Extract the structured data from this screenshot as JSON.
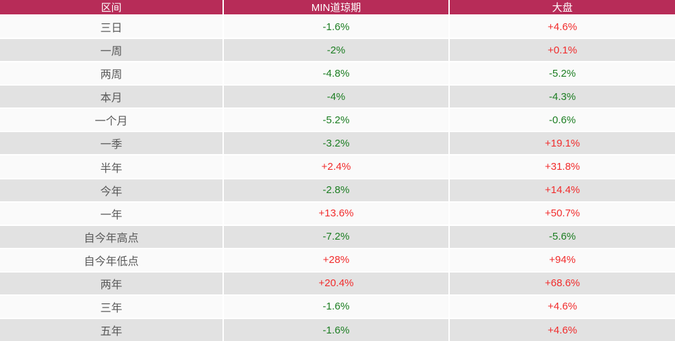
{
  "theme": {
    "header_bg": "#b72c58",
    "header_text": "#ffffff",
    "row_light": "#fafafa",
    "row_dark": "#e2e2e2",
    "label_color": "#595959",
    "up_color": "#f12b2b",
    "down_color": "#1b7d21",
    "divider": "#ffffff"
  },
  "table": {
    "columns": [
      "区间",
      "MIN道琼期",
      "大盘"
    ],
    "rows": [
      {
        "label": "三日",
        "min": {
          "text": "-1.6%",
          "dir": "down"
        },
        "market": {
          "text": "+4.6%",
          "dir": "up"
        }
      },
      {
        "label": "一周",
        "min": {
          "text": "-2%",
          "dir": "down"
        },
        "market": {
          "text": "+0.1%",
          "dir": "up"
        }
      },
      {
        "label": "两周",
        "min": {
          "text": "-4.8%",
          "dir": "down"
        },
        "market": {
          "text": "-5.2%",
          "dir": "down"
        }
      },
      {
        "label": "本月",
        "min": {
          "text": "-4%",
          "dir": "down"
        },
        "market": {
          "text": "-4.3%",
          "dir": "down"
        }
      },
      {
        "label": "一个月",
        "min": {
          "text": "-5.2%",
          "dir": "down"
        },
        "market": {
          "text": "-0.6%",
          "dir": "down"
        }
      },
      {
        "label": "一季",
        "min": {
          "text": "-3.2%",
          "dir": "down"
        },
        "market": {
          "text": "+19.1%",
          "dir": "up"
        }
      },
      {
        "label": "半年",
        "min": {
          "text": "+2.4%",
          "dir": "up"
        },
        "market": {
          "text": "+31.8%",
          "dir": "up"
        }
      },
      {
        "label": "今年",
        "min": {
          "text": "-2.8%",
          "dir": "down"
        },
        "market": {
          "text": "+14.4%",
          "dir": "up"
        }
      },
      {
        "label": "一年",
        "min": {
          "text": "+13.6%",
          "dir": "up"
        },
        "market": {
          "text": "+50.7%",
          "dir": "up"
        }
      },
      {
        "label": "自今年高点",
        "min": {
          "text": "-7.2%",
          "dir": "down"
        },
        "market": {
          "text": "-5.6%",
          "dir": "down"
        }
      },
      {
        "label": "自今年低点",
        "min": {
          "text": "+28%",
          "dir": "up"
        },
        "market": {
          "text": "+94%",
          "dir": "up"
        }
      },
      {
        "label": "两年",
        "min": {
          "text": "+20.4%",
          "dir": "up"
        },
        "market": {
          "text": "+68.6%",
          "dir": "up"
        }
      },
      {
        "label": "三年",
        "min": {
          "text": "-1.6%",
          "dir": "down"
        },
        "market": {
          "text": "+4.6%",
          "dir": "up"
        }
      },
      {
        "label": "五年",
        "min": {
          "text": "-1.6%",
          "dir": "down"
        },
        "market": {
          "text": "+4.6%",
          "dir": "up"
        }
      }
    ]
  },
  "chart_data": {
    "type": "table",
    "title": "",
    "categories": [
      "三日",
      "一周",
      "两周",
      "本月",
      "一个月",
      "一季",
      "半年",
      "今年",
      "一年",
      "自今年高点",
      "自今年低点",
      "两年",
      "三年",
      "五年"
    ],
    "series": [
      {
        "name": "MIN道琼期",
        "unit": "%",
        "values": [
          -1.6,
          -2,
          -4.8,
          -4,
          -5.2,
          -3.2,
          2.4,
          -2.8,
          13.6,
          -7.2,
          28,
          20.4,
          -1.6,
          -1.6
        ]
      },
      {
        "name": "大盘",
        "unit": "%",
        "values": [
          4.6,
          0.1,
          -5.2,
          -4.3,
          -0.6,
          19.1,
          31.8,
          14.4,
          50.7,
          -5.6,
          94,
          68.6,
          4.6,
          4.6
        ]
      }
    ],
    "layout": {
      "up_color_meaning": "positive (red)",
      "down_color_meaning": "negative (green)",
      "striped_rows": true
    }
  }
}
